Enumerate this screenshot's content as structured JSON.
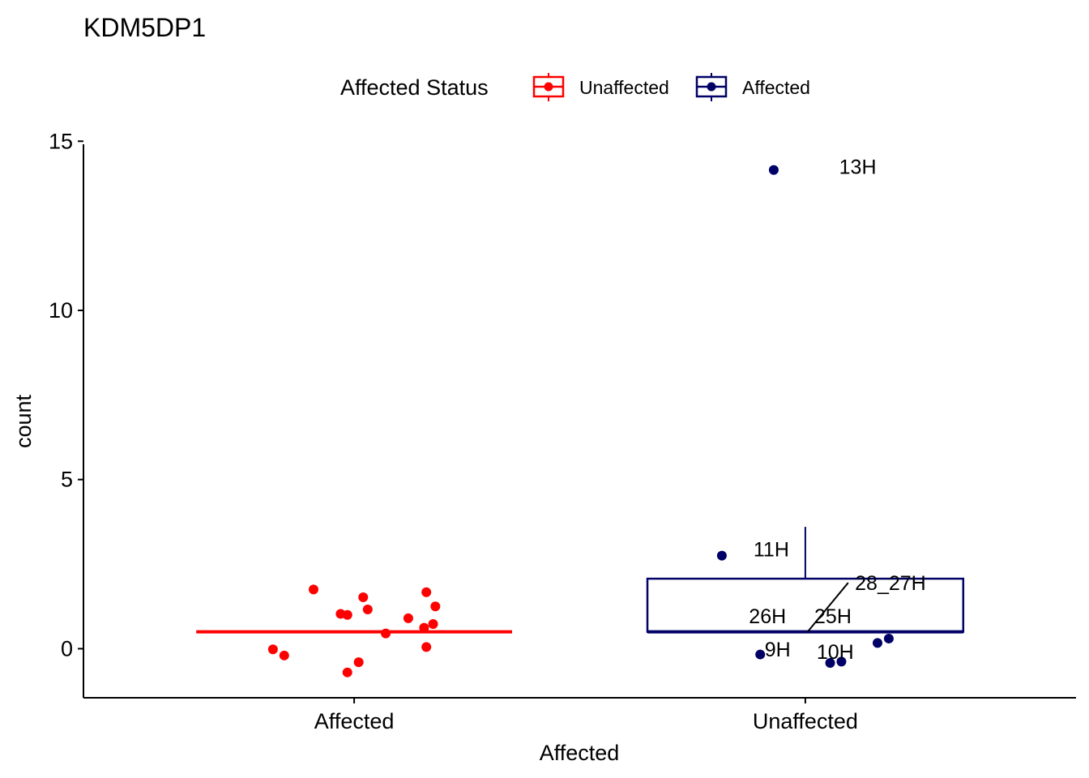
{
  "chart_data": {
    "type": "boxplot_jitter",
    "title": "KDM5DP1",
    "xlabel": "Affected",
    "ylabel": "count",
    "ylim": [
      -1.45,
      15.15
    ],
    "yticks": [
      0,
      5,
      10,
      15
    ],
    "categories": [
      "Affected",
      "Unaffected"
    ],
    "legend": {
      "title": "Affected Status",
      "position": "top",
      "entries": [
        {
          "label": "Unaffected",
          "color": "#FF0000"
        },
        {
          "label": "Affected",
          "color": "#000066"
        }
      ]
    },
    "boxes": [
      {
        "category": "Affected",
        "color": "#FF0000",
        "q1": 0.5,
        "median": 0.5,
        "q3": 0.5,
        "whisker_low": 0.5,
        "whisker_high": 0.5
      },
      {
        "category": "Unaffected",
        "color": "#000066",
        "q1": 0.5,
        "median": 0.5,
        "q3": 2.07,
        "whisker_low": 0.5,
        "whisker_high": 3.6
      }
    ],
    "points": [
      {
        "category": "Affected",
        "color": "#FF0000",
        "jitter": -0.09,
        "y": 1.75
      },
      {
        "category": "Affected",
        "color": "#FF0000",
        "jitter": 0.02,
        "y": 1.52
      },
      {
        "category": "Affected",
        "color": "#FF0000",
        "jitter": 0.16,
        "y": 1.67
      },
      {
        "category": "Affected",
        "color": "#FF0000",
        "jitter": 0.18,
        "y": 1.25
      },
      {
        "category": "Affected",
        "color": "#FF0000",
        "jitter": 0.03,
        "y": 1.16
      },
      {
        "category": "Affected",
        "color": "#FF0000",
        "jitter": -0.03,
        "y": 1.03
      },
      {
        "category": "Affected",
        "color": "#FF0000",
        "jitter": -0.015,
        "y": 1.0
      },
      {
        "category": "Affected",
        "color": "#FF0000",
        "jitter": 0.12,
        "y": 0.9
      },
      {
        "category": "Affected",
        "color": "#FF0000",
        "jitter": 0.175,
        "y": 0.73
      },
      {
        "category": "Affected",
        "color": "#FF0000",
        "jitter": 0.155,
        "y": 0.62
      },
      {
        "category": "Affected",
        "color": "#FF0000",
        "jitter": 0.07,
        "y": 0.45
      },
      {
        "category": "Affected",
        "color": "#FF0000",
        "jitter": 0.16,
        "y": 0.05
      },
      {
        "category": "Affected",
        "color": "#FF0000",
        "jitter": -0.18,
        "y": -0.02
      },
      {
        "category": "Affected",
        "color": "#FF0000",
        "jitter": -0.155,
        "y": -0.2
      },
      {
        "category": "Affected",
        "color": "#FF0000",
        "jitter": 0.01,
        "y": -0.4
      },
      {
        "category": "Affected",
        "color": "#FF0000",
        "jitter": -0.015,
        "y": -0.7
      },
      {
        "category": "Unaffected",
        "color": "#000066",
        "jitter": -0.07,
        "y": 14.15
      },
      {
        "category": "Unaffected",
        "color": "#000066",
        "jitter": -0.185,
        "y": 2.75
      },
      {
        "category": "Unaffected",
        "color": "#000066",
        "jitter": 0.185,
        "y": 0.3
      },
      {
        "category": "Unaffected",
        "color": "#000066",
        "jitter": 0.16,
        "y": 0.17
      },
      {
        "category": "Unaffected",
        "color": "#000066",
        "jitter": -0.1,
        "y": -0.17
      },
      {
        "category": "Unaffected",
        "color": "#000066",
        "jitter": 0.08,
        "y": -0.38
      },
      {
        "category": "Unaffected",
        "color": "#000066",
        "jitter": 0.055,
        "y": -0.42
      }
    ],
    "annotations": [
      {
        "text": "13H",
        "category": "Unaffected",
        "dx": 0.075,
        "y": 14.25,
        "leader": null
      },
      {
        "text": "11H",
        "category": "Unaffected",
        "dx": -0.115,
        "y": 2.95,
        "leader": null
      },
      {
        "text": "28_27H",
        "category": "Unaffected",
        "dx": 0.11,
        "y": 1.95,
        "leader": {
          "from_dx": 0.095,
          "from_y": 1.95,
          "to_dx": 0.005,
          "to_y": 0.5
        }
      },
      {
        "text": "26H",
        "category": "Unaffected",
        "dx": -0.125,
        "y": 0.97,
        "leader": null
      },
      {
        "text": "25H",
        "category": "Unaffected",
        "dx": 0.02,
        "y": 0.97,
        "leader": null
      },
      {
        "text": "9H",
        "category": "Unaffected",
        "dx": -0.09,
        "y": -0.01,
        "leader": null
      },
      {
        "text": "10H",
        "category": "Unaffected",
        "dx": 0.025,
        "y": -0.08,
        "leader": null
      }
    ]
  }
}
